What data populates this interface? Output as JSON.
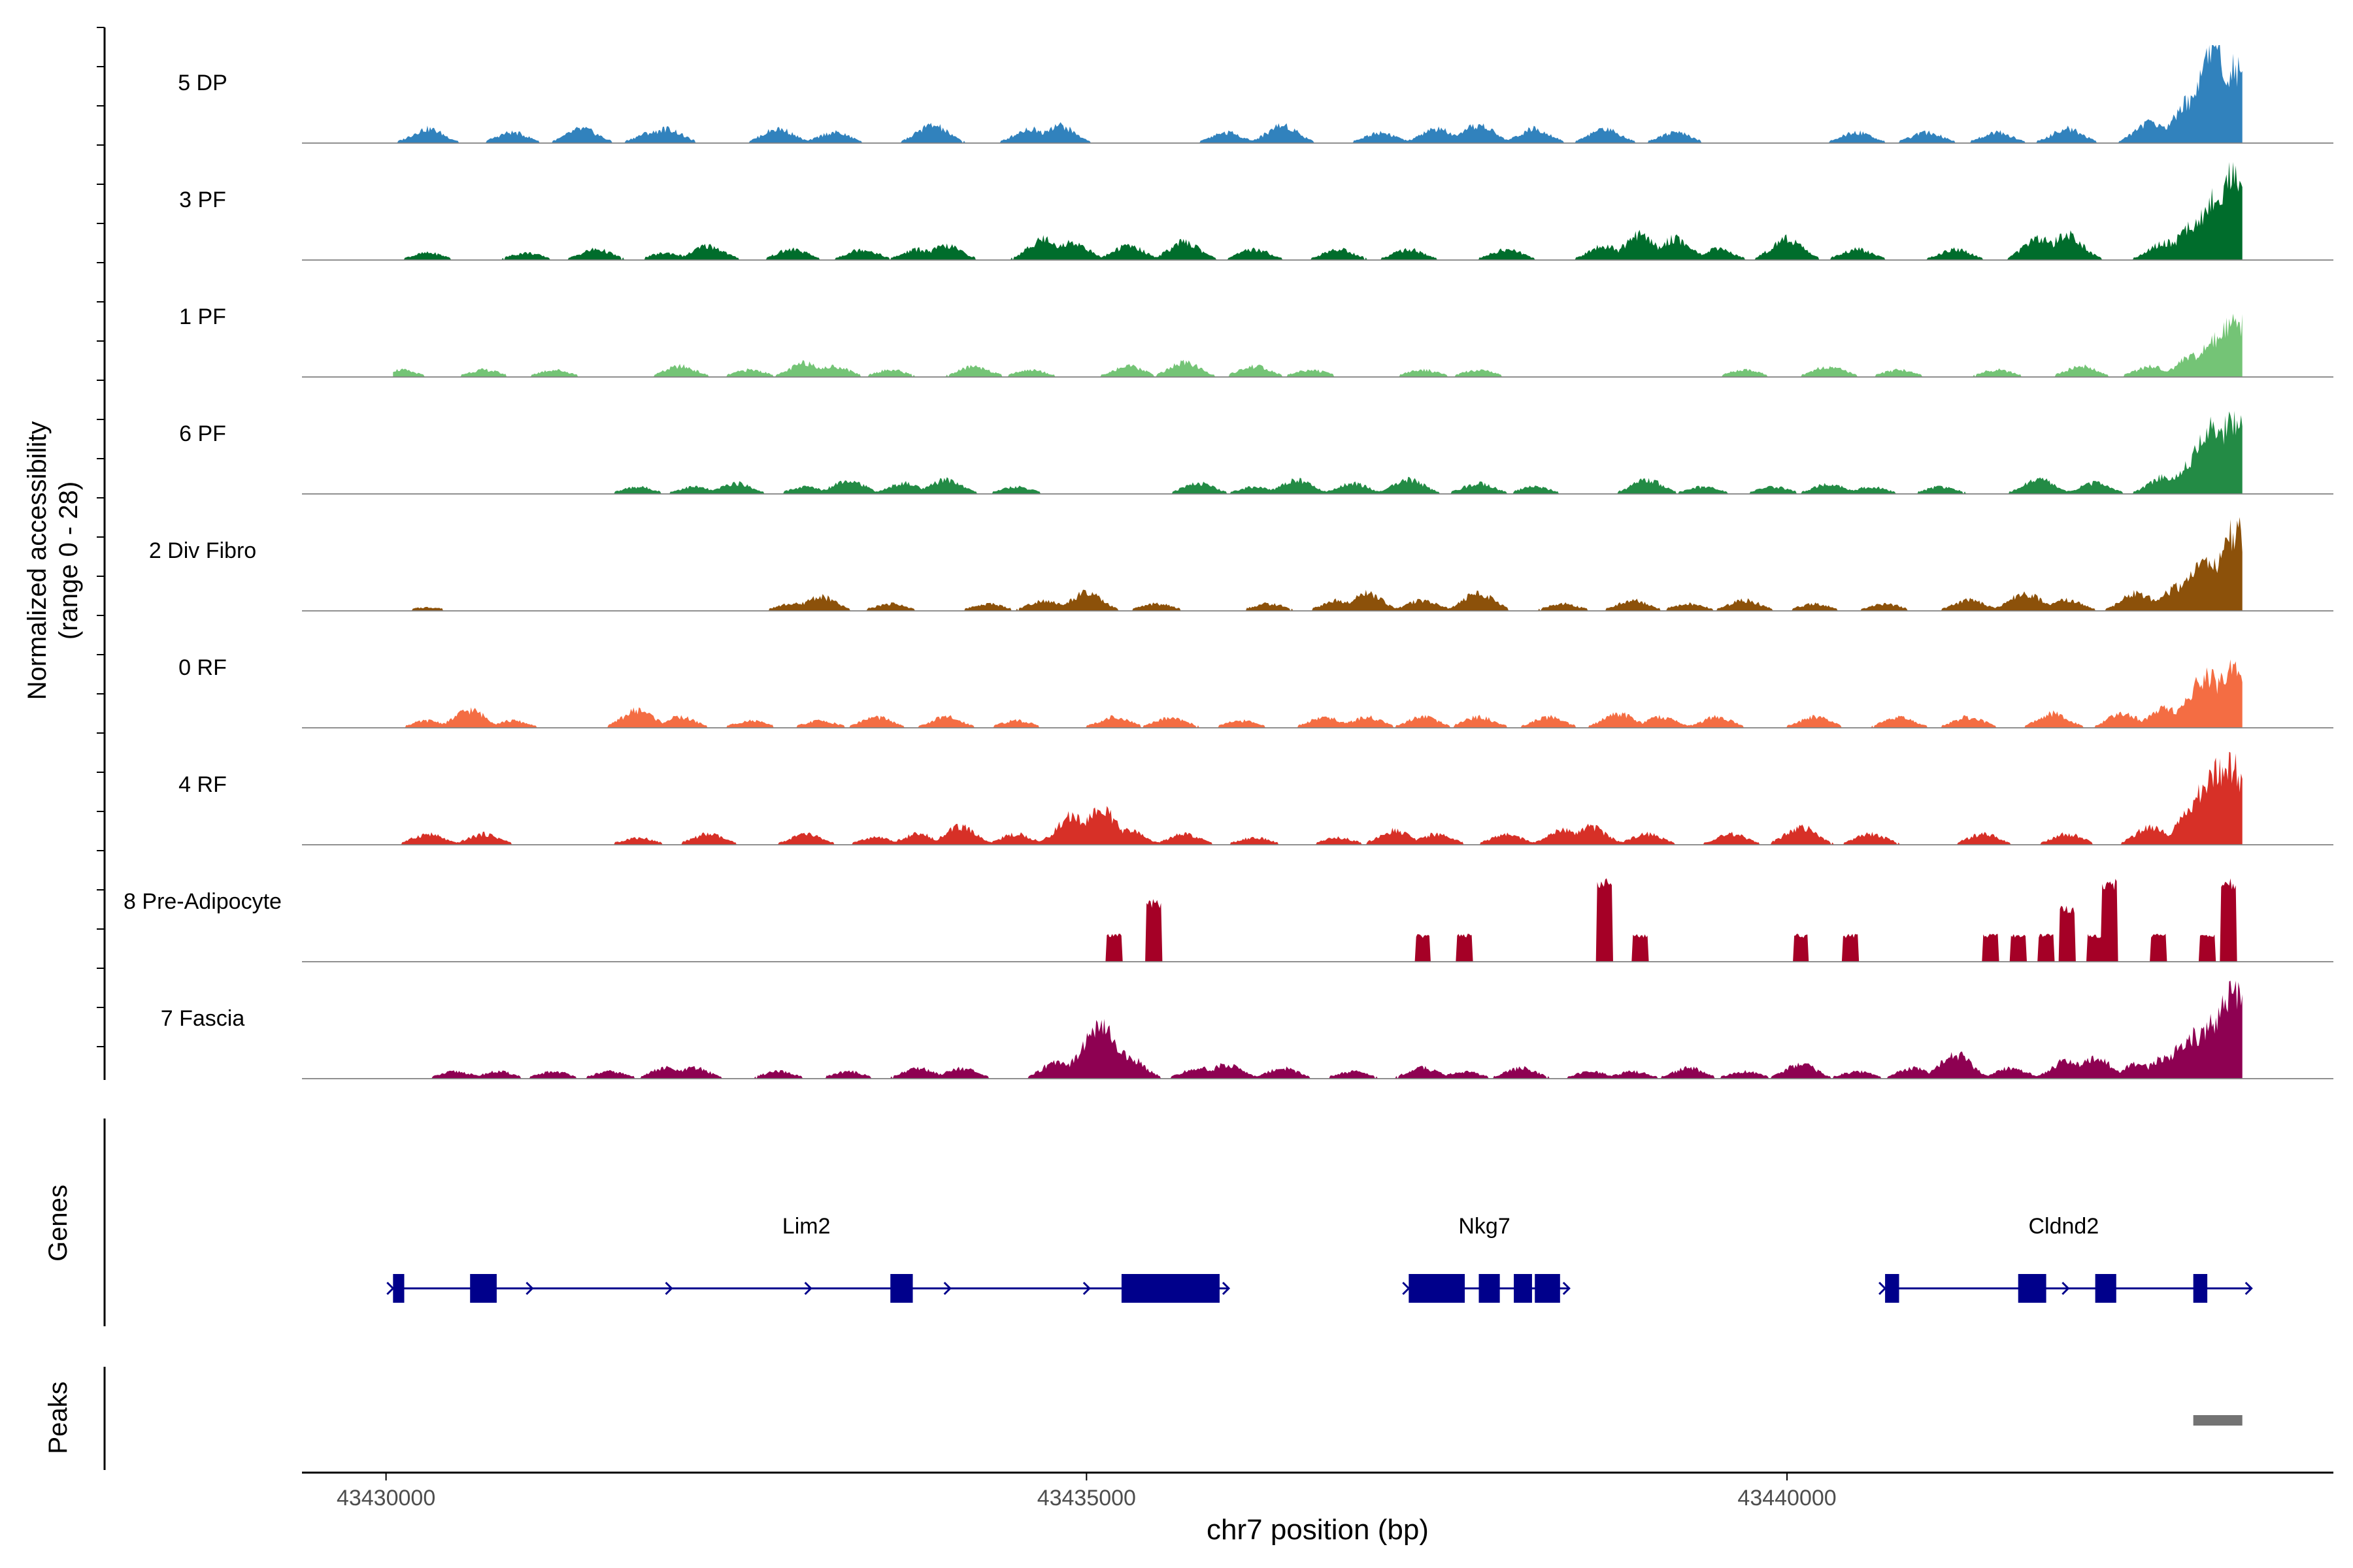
{
  "chart_data": {
    "type": "area",
    "title": "",
    "ylabel_line1": "Normalized accessibility",
    "ylabel_line2": "(range 0 - 28)",
    "ylim": [
      0,
      28
    ],
    "xlabel": "chr7 position (bp)",
    "xlim": [
      43429400,
      43443900
    ],
    "x_ticks": [
      43430000,
      43435000,
      43440000
    ],
    "x_tick_labels": [
      "43430000",
      "43435000",
      "43440000"
    ],
    "track_labels": {
      "genes": "Genes",
      "peaks": "Peaks"
    },
    "series": [
      {
        "name": "5 DP",
        "color": "#3182bd",
        "region": [
          43430050,
          43443250
        ],
        "peaks": [
          [
            43430300,
            4
          ],
          [
            43430900,
            3
          ],
          [
            43431400,
            4
          ],
          [
            43431900,
            3
          ],
          [
            43432000,
            4
          ],
          [
            43432800,
            4
          ],
          [
            43433200,
            3
          ],
          [
            43433900,
            5
          ],
          [
            43434600,
            4
          ],
          [
            43434800,
            5
          ],
          [
            43436000,
            3
          ],
          [
            43436400,
            5
          ],
          [
            43437100,
            3
          ],
          [
            43437500,
            4
          ],
          [
            43437800,
            5
          ],
          [
            43438200,
            4
          ],
          [
            43438700,
            4
          ],
          [
            43439200,
            3
          ],
          [
            43440500,
            3
          ],
          [
            43441000,
            3
          ],
          [
            43441500,
            3
          ],
          [
            43442000,
            4
          ],
          [
            43442600,
            6
          ],
          [
            43442900,
            12
          ],
          [
            43443050,
            26
          ],
          [
            43443200,
            21
          ]
        ]
      },
      {
        "name": "3 PF",
        "color": "#006d2c",
        "region": [
          43430050,
          43443250
        ],
        "peaks": [
          [
            43430300,
            2
          ],
          [
            43431000,
            2
          ],
          [
            43431500,
            3
          ],
          [
            43432000,
            2
          ],
          [
            43432300,
            4
          ],
          [
            43432900,
            3
          ],
          [
            43433400,
            3
          ],
          [
            43433800,
            3
          ],
          [
            43434000,
            4
          ],
          [
            43434700,
            6
          ],
          [
            43434900,
            5
          ],
          [
            43435300,
            4
          ],
          [
            43435700,
            5
          ],
          [
            43436200,
            3
          ],
          [
            43436800,
            3
          ],
          [
            43437300,
            3
          ],
          [
            43438000,
            3
          ],
          [
            43438700,
            4
          ],
          [
            43438950,
            7
          ],
          [
            43439200,
            6
          ],
          [
            43439500,
            3
          ],
          [
            43440000,
            6
          ],
          [
            43440500,
            3
          ],
          [
            43441200,
            3
          ],
          [
            43441800,
            6
          ],
          [
            43442000,
            7
          ],
          [
            43442700,
            5
          ],
          [
            43442900,
            10
          ],
          [
            43443100,
            20
          ],
          [
            43443220,
            26
          ]
        ]
      },
      {
        "name": "1 PF",
        "color": "#74c476",
        "region": [
          43430050,
          43443250
        ],
        "peaks": [
          [
            43430100,
            2
          ],
          [
            43430700,
            2
          ],
          [
            43431200,
            2
          ],
          [
            43432100,
            3
          ],
          [
            43432600,
            2
          ],
          [
            43433000,
            4
          ],
          [
            43433200,
            3
          ],
          [
            43433600,
            2
          ],
          [
            43434200,
            3
          ],
          [
            43434600,
            2
          ],
          [
            43435300,
            3
          ],
          [
            43435700,
            4
          ],
          [
            43436200,
            3
          ],
          [
            43436600,
            2
          ],
          [
            43437400,
            2
          ],
          [
            43437800,
            2
          ],
          [
            43439700,
            2
          ],
          [
            43440300,
            3
          ],
          [
            43440800,
            2
          ],
          [
            43441500,
            2
          ],
          [
            43442100,
            3
          ],
          [
            43442600,
            3
          ],
          [
            43442900,
            6
          ],
          [
            43443100,
            11
          ],
          [
            43443200,
            16
          ]
        ]
      },
      {
        "name": "6 PF",
        "color": "#238b45",
        "region": [
          43430050,
          43443250
        ],
        "peaks": [
          [
            43431800,
            2
          ],
          [
            43432200,
            2
          ],
          [
            43432500,
            3
          ],
          [
            43433000,
            2
          ],
          [
            43433300,
            4
          ],
          [
            43433700,
            3
          ],
          [
            43434000,
            4
          ],
          [
            43434500,
            2
          ],
          [
            43435800,
            3
          ],
          [
            43436200,
            2
          ],
          [
            43436500,
            4
          ],
          [
            43436900,
            3
          ],
          [
            43437300,
            4
          ],
          [
            43437800,
            3
          ],
          [
            43438200,
            2
          ],
          [
            43439000,
            4
          ],
          [
            43439400,
            2
          ],
          [
            43439900,
            2
          ],
          [
            43440300,
            3
          ],
          [
            43440600,
            2
          ],
          [
            43441100,
            2
          ],
          [
            43441800,
            4
          ],
          [
            43442200,
            3
          ],
          [
            43442700,
            5
          ],
          [
            43442900,
            9
          ],
          [
            43443050,
            19
          ],
          [
            43443200,
            22
          ]
        ]
      },
      {
        "name": "2 Div Fibro",
        "color": "#8c510a",
        "region": [
          43430050,
          43443250
        ],
        "peaks": [
          [
            43430300,
            1
          ],
          [
            43432900,
            2
          ],
          [
            43433100,
            4
          ],
          [
            43433600,
            2
          ],
          [
            43434300,
            2
          ],
          [
            43434700,
            3
          ],
          [
            43435000,
            5
          ],
          [
            43435500,
            2
          ],
          [
            43436300,
            2
          ],
          [
            43436800,
            3
          ],
          [
            43437000,
            5
          ],
          [
            43437400,
            3
          ],
          [
            43437800,
            5
          ],
          [
            43438400,
            2
          ],
          [
            43438900,
            3
          ],
          [
            43439300,
            2
          ],
          [
            43439700,
            3
          ],
          [
            43440200,
            2
          ],
          [
            43440700,
            2
          ],
          [
            43441300,
            3
          ],
          [
            43441700,
            5
          ],
          [
            43442000,
            3
          ],
          [
            43442500,
            5
          ],
          [
            43442800,
            7
          ],
          [
            43443000,
            14
          ],
          [
            43443200,
            22
          ]
        ]
      },
      {
        "name": "0 RF",
        "color": "#f46d43",
        "region": [
          43430050,
          43443250
        ],
        "peaks": [
          [
            43430300,
            2
          ],
          [
            43430600,
            5
          ],
          [
            43430900,
            2
          ],
          [
            43431800,
            5
          ],
          [
            43432100,
            3
          ],
          [
            43432600,
            2
          ],
          [
            43433100,
            2
          ],
          [
            43433500,
            3
          ],
          [
            43434000,
            3
          ],
          [
            43434500,
            2
          ],
          [
            43435200,
            3
          ],
          [
            43435600,
            3
          ],
          [
            43436100,
            2
          ],
          [
            43436700,
            3
          ],
          [
            43437000,
            3
          ],
          [
            43437400,
            3
          ],
          [
            43437800,
            3
          ],
          [
            43438300,
            3
          ],
          [
            43438800,
            4
          ],
          [
            43439100,
            3
          ],
          [
            43439500,
            3
          ],
          [
            43440200,
            3
          ],
          [
            43440800,
            3
          ],
          [
            43441300,
            3
          ],
          [
            43441900,
            4
          ],
          [
            43442400,
            4
          ],
          [
            43442700,
            6
          ],
          [
            43443000,
            14
          ],
          [
            43443200,
            18
          ]
        ]
      },
      {
        "name": "4 RF",
        "color": "#d73027",
        "region": [
          43430050,
          43443250
        ],
        "peaks": [
          [
            43430300,
            3
          ],
          [
            43430700,
            3
          ],
          [
            43431800,
            2
          ],
          [
            43432300,
            3
          ],
          [
            43433000,
            3
          ],
          [
            43433500,
            2
          ],
          [
            43433800,
            3
          ],
          [
            43434100,
            5
          ],
          [
            43434500,
            3
          ],
          [
            43434900,
            8
          ],
          [
            43435100,
            10
          ],
          [
            43435300,
            4
          ],
          [
            43435700,
            3
          ],
          [
            43436200,
            2
          ],
          [
            43436800,
            2
          ],
          [
            43437200,
            4
          ],
          [
            43437500,
            3
          ],
          [
            43438000,
            3
          ],
          [
            43438400,
            4
          ],
          [
            43438600,
            5
          ],
          [
            43439000,
            3
          ],
          [
            43439600,
            3
          ],
          [
            43440100,
            5
          ],
          [
            43440600,
            3
          ],
          [
            43441400,
            3
          ],
          [
            43442000,
            3
          ],
          [
            43442600,
            5
          ],
          [
            43442900,
            10
          ],
          [
            43443050,
            20
          ],
          [
            43443150,
            23
          ]
        ]
      },
      {
        "name": "8 Pre-Adipocyte",
        "color": "#a50026",
        "region": [
          43430050,
          43443250
        ],
        "peaks": [
          [
            43435200,
            8
          ],
          [
            43435480,
            18
          ],
          [
            43437400,
            8
          ],
          [
            43437700,
            8
          ],
          [
            43438700,
            24
          ],
          [
            43438950,
            8
          ],
          [
            43440100,
            8
          ],
          [
            43440450,
            8
          ],
          [
            43441450,
            8
          ],
          [
            43441650,
            8
          ],
          [
            43441850,
            8
          ],
          [
            43442000,
            16
          ],
          [
            43442200,
            8
          ],
          [
            43442300,
            24
          ],
          [
            43442650,
            8
          ],
          [
            43443000,
            8
          ],
          [
            43443150,
            24
          ]
        ]
      },
      {
        "name": "7 Fascia",
        "color": "#8e0152",
        "region": [
          43430050,
          43443250
        ],
        "peaks": [
          [
            43430500,
            2
          ],
          [
            43430800,
            2
          ],
          [
            43431200,
            2
          ],
          [
            43431600,
            2
          ],
          [
            43432000,
            3
          ],
          [
            43432200,
            3
          ],
          [
            43432800,
            2
          ],
          [
            43433300,
            2
          ],
          [
            43433800,
            3
          ],
          [
            43434100,
            3
          ],
          [
            43434800,
            5
          ],
          [
            43435100,
            14
          ],
          [
            43435300,
            6
          ],
          [
            43435800,
            3
          ],
          [
            43436000,
            4
          ],
          [
            43436400,
            3
          ],
          [
            43436900,
            2
          ],
          [
            43437400,
            3
          ],
          [
            43437700,
            2
          ],
          [
            43438100,
            3
          ],
          [
            43438600,
            2
          ],
          [
            43438900,
            2
          ],
          [
            43439300,
            3
          ],
          [
            43439700,
            2
          ],
          [
            43440100,
            4
          ],
          [
            43440500,
            2
          ],
          [
            43440900,
            3
          ],
          [
            43441200,
            7
          ],
          [
            43441600,
            3
          ],
          [
            43442000,
            5
          ],
          [
            43442200,
            6
          ],
          [
            43442500,
            4
          ],
          [
            43442700,
            6
          ],
          [
            43442900,
            12
          ],
          [
            43443050,
            16
          ],
          [
            43443200,
            26
          ]
        ]
      }
    ],
    "genes": [
      {
        "name": "Lim2",
        "strand": "+",
        "start": 43430050,
        "end": 43435950,
        "exons": [
          [
            43430050,
            43430130
          ],
          [
            43430600,
            43430790
          ],
          [
            43433600,
            43433760
          ],
          [
            43435250,
            43435950
          ]
        ]
      },
      {
        "name": "Nkg7",
        "strand": "+",
        "start": 43437300,
        "end": 43438380,
        "exons": [
          [
            43437300,
            43437700
          ],
          [
            43437800,
            43437950
          ],
          [
            43438050,
            43438180
          ],
          [
            43438200,
            43438380
          ]
        ]
      },
      {
        "name": "Cldnd2",
        "strand": "+",
        "start": 43440700,
        "end": 43443250,
        "exons": [
          [
            43440700,
            43440800
          ],
          [
            43441650,
            43441850
          ],
          [
            43442200,
            43442350
          ],
          [
            43442900,
            43443000
          ]
        ]
      }
    ],
    "peaks": [
      [
        43442900,
        43443250
      ]
    ],
    "colors": {
      "gene": "#00008b",
      "peak": "#737373",
      "baseline": "#808080",
      "axis": "#000000"
    }
  }
}
